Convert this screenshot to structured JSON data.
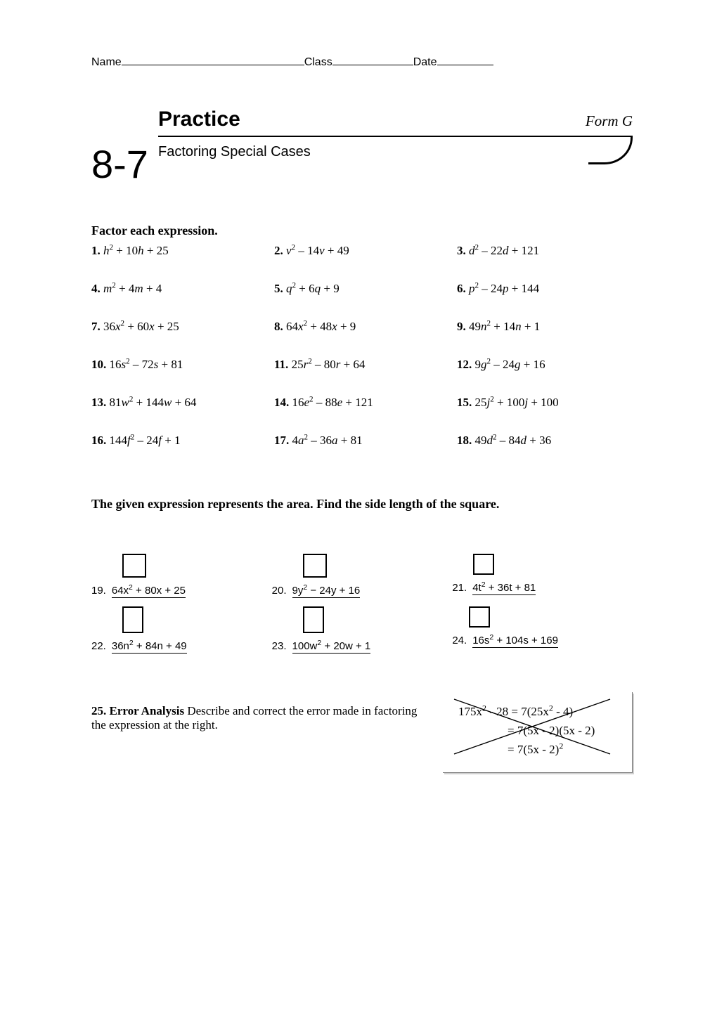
{
  "header": {
    "name_label": "Name",
    "class_label": "Class",
    "date_label": "Date"
  },
  "title": {
    "practice": "Practice",
    "form": "Form G",
    "subtitle": "Factoring Special Cases",
    "section_number": "8-7"
  },
  "instruction1": "Factor each expression.",
  "problems": [
    {
      "n": "1.",
      "html": "<i>h</i><sup>2</sup> + 10<i>h</i> + 25"
    },
    {
      "n": "2.",
      "html": "<i>v</i><sup>2</sup> – 14<i>v</i> + 49"
    },
    {
      "n": "3.",
      "html": "<i>d</i><sup>2</sup> – 22<i>d</i> + 121"
    },
    {
      "n": "4.",
      "html": "<i>m</i><sup>2</sup> + 4<i>m</i> + 4"
    },
    {
      "n": "5.",
      "html": "<i>q</i><sup>2</sup> + 6<i>q</i> + 9"
    },
    {
      "n": "6.",
      "html": "<i>p</i><sup>2</sup> – 24<i>p</i> + 144"
    },
    {
      "n": "7.",
      "html": "36<i>x</i><sup>2</sup> + 60<i>x</i> + 25"
    },
    {
      "n": "8.",
      "html": "64<i>x</i><sup>2</sup> + 48<i>x</i> + 9"
    },
    {
      "n": "9.",
      "html": "49<i>n</i><sup>2</sup> + 14<i>n</i> + 1"
    },
    {
      "n": "10.",
      "html": "16<i>s</i><sup>2</sup> – 72<i>s</i> + 81"
    },
    {
      "n": "11.",
      "html": "25<i>r</i><sup>2</sup> – 80<i>r</i> + 64"
    },
    {
      "n": "12.",
      "html": "9<i>g</i><sup>2</sup> – 24<i>g</i> + 16"
    },
    {
      "n": "13.",
      "html": "81<i>w</i><sup>2</sup> + 144<i>w</i> + 64"
    },
    {
      "n": "14.",
      "html": "16<i>e</i><sup>2</sup> – 88<i>e</i> + 121"
    },
    {
      "n": "15.",
      "html": "25<i>j</i><sup>2</sup> + 100<i>j</i> + 100"
    },
    {
      "n": "16.",
      "html": "144<i>f</i><sup>2</sup> – 24<i>f</i> + 1"
    },
    {
      "n": "17.",
      "html": "4<i>a</i><sup>2</sup> – 36<i>a</i> + 81"
    },
    {
      "n": "18.",
      "html": "49<i>d</i><sup>2</sup> – 84<i>d</i> + 36"
    }
  ],
  "instruction2": "The given expression represents the area. Find the side length of the square.",
  "area_problems": [
    {
      "n": "19.",
      "html": "64x<sup>2</sup> + 80x + 25"
    },
    {
      "n": "20.",
      "html": "9y<sup>2</sup> − 24y + 16"
    },
    {
      "n": "21.",
      "html": "4t<sup>2</sup> + 36t + 81"
    },
    {
      "n": "22.",
      "html": "36n<sup>2</sup> + 84n + 49"
    },
    {
      "n": "23.",
      "html": "100w<sup>2</sup> + 20w + 1"
    },
    {
      "n": "24.",
      "html": "16s<sup>2</sup> + 104s + 169"
    }
  ],
  "error_analysis": {
    "n": "25.",
    "label": "Error Analysis",
    "text": " Describe and correct the error made in factoring the expression at the right.",
    "work_lines": [
      "175x<sup>2</sup> - 28 = 7(25x<sup>2</sup> - 4)",
      "= 7(5x - 2)(5x - 2)",
      "= 7(5x - 2)<sup>2</sup>"
    ]
  },
  "styles": {
    "page_bg": "#ffffff",
    "text_color": "#000000",
    "rule_color": "#000000",
    "error_box_shadow": "#d0d0d0",
    "error_box_border": "#7a7a7a",
    "font_body_pt": 13,
    "font_title_pt": 22,
    "font_section_pt": 42
  }
}
